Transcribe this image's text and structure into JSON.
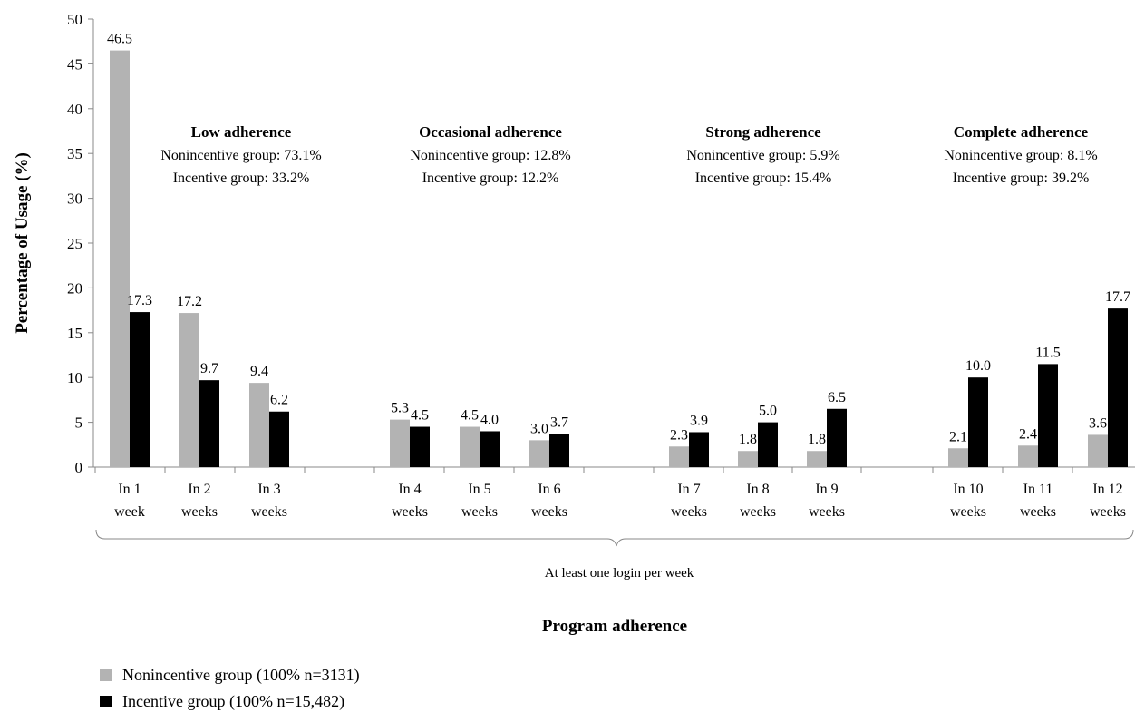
{
  "chart_data": {
    "type": "bar",
    "xlabel": "Program adherence",
    "ylabel": "Percentage of Usage (%)",
    "ylim": [
      0,
      50
    ],
    "yticks": [
      0,
      5,
      10,
      15,
      20,
      25,
      30,
      35,
      40,
      45,
      50
    ],
    "categories": [
      [
        "In 1",
        "week"
      ],
      [
        "In 2",
        "weeks"
      ],
      [
        "In 3",
        "weeks"
      ],
      [
        "In 4",
        "weeks"
      ],
      [
        "In 5",
        "weeks"
      ],
      [
        "In 6",
        "weeks"
      ],
      [
        "In 7",
        "weeks"
      ],
      [
        "In 8",
        "weeks"
      ],
      [
        "In 9",
        "weeks"
      ],
      [
        "In 10",
        "weeks"
      ],
      [
        "In 11",
        "weeks"
      ],
      [
        "In 12",
        "weeks"
      ]
    ],
    "series": [
      {
        "name": "Nonincentive group (100% n=3131)",
        "color": "#b3b3b3",
        "values": [
          46.5,
          17.2,
          9.4,
          5.3,
          4.5,
          3.0,
          2.3,
          1.8,
          1.8,
          2.1,
          2.4,
          3.6
        ],
        "labels": [
          "46.5",
          "17.2",
          "9.4",
          "5.3",
          "4.5",
          "3.0",
          "2.3",
          "1.8",
          "1.8",
          "2.1",
          "2.4",
          "3.6"
        ]
      },
      {
        "name": "Incentive group (100% n=15,482)",
        "color": "#000000",
        "values": [
          17.3,
          9.7,
          6.2,
          4.5,
          4.0,
          3.7,
          3.9,
          5.0,
          6.5,
          10.0,
          11.5,
          17.7
        ],
        "labels": [
          "17.3",
          "9.7",
          "6.2",
          "4.5",
          "4.0",
          "3.7",
          "3.9",
          "5.0",
          "6.5",
          "10.0",
          "11.5",
          "17.7"
        ]
      }
    ],
    "annotations": [
      {
        "title": "Low adherence",
        "line1": "Nonincentive group: 73.1%",
        "line2": "Incentive group: 33.2%"
      },
      {
        "title": "Occasional adherence",
        "line1": "Nonincentive group: 12.8%",
        "line2": "Incentive group: 12.2%"
      },
      {
        "title": "Strong adherence",
        "line1": "Nonincentive group: 5.9%",
        "line2": "Incentive group: 15.4%"
      },
      {
        "title": "Complete adherence",
        "line1": "Nonincentive group: 8.1%",
        "line2": "Incentive group: 39.2%"
      }
    ],
    "brace_label": "At least one login per week",
    "legend_position": "bottom-left",
    "grid": false
  }
}
